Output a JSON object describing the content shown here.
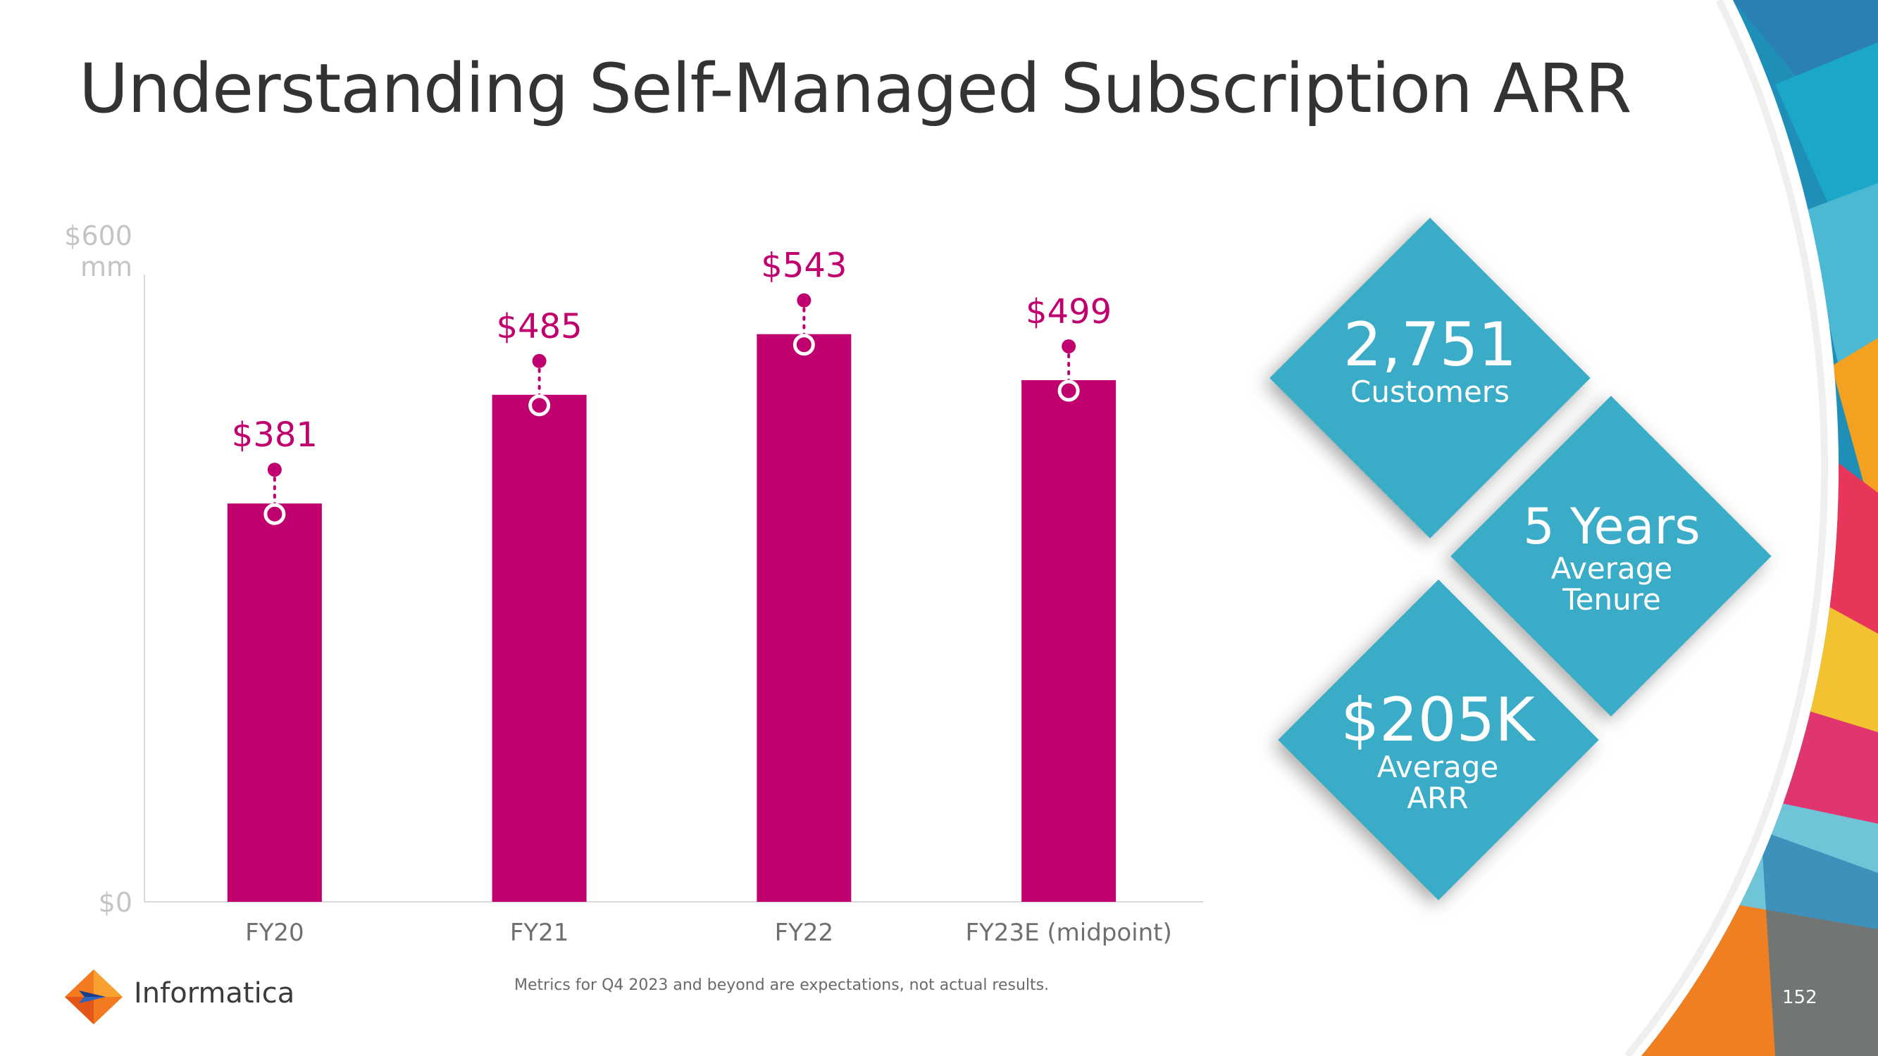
{
  "slide": {
    "title": "Understanding Self-Managed Subscription ARR",
    "footnote": "Metrics for Q4 2023 and beyond are expectations, not actual results.",
    "page_number": "152",
    "brand": "Informatica"
  },
  "chart_data": {
    "type": "bar",
    "categories": [
      "FY20",
      "FY21",
      "FY22",
      "FY23E (midpoint)"
    ],
    "values": [
      381,
      485,
      543,
      499
    ],
    "data_labels": [
      "$381",
      "$485",
      "$543",
      "$499"
    ],
    "y_tick_labels": [
      {
        "value": 600,
        "lines": [
          "$600",
          "mm"
        ]
      },
      {
        "value": 0,
        "lines": [
          "$0"
        ]
      }
    ],
    "ylim": [
      0,
      600
    ],
    "title": "",
    "xlabel": "",
    "ylabel": "",
    "grid": false,
    "bar_color": "#C0006E",
    "label_color": "#C0006E"
  },
  "kpis": [
    {
      "value": "2,751",
      "label_lines": [
        "Customers"
      ]
    },
    {
      "value": "5 Years",
      "label_lines": [
        "Average",
        "Tenure"
      ]
    },
    {
      "value": "$205K",
      "label_lines": [
        "Average",
        "ARR"
      ]
    }
  ],
  "colors": {
    "kpi_fill": "#3AACC7",
    "title": "#333333",
    "axis": "#d9d9d9"
  }
}
